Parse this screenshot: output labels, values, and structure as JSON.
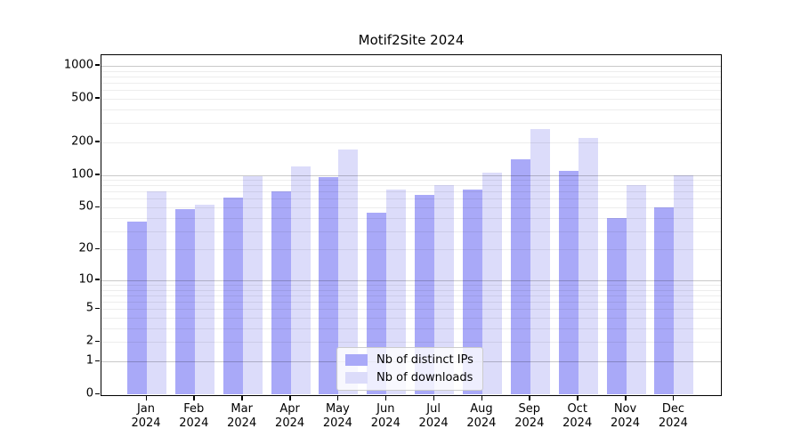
{
  "chart_data": {
    "type": "bar",
    "title": "Motif2Site 2024",
    "categories": [
      "Jan",
      "Feb",
      "Mar",
      "Apr",
      "May",
      "Jun",
      "Jul",
      "Aug",
      "Sep",
      "Oct",
      "Nov",
      "Dec"
    ],
    "x_year_label": "2024",
    "series": [
      {
        "name": "Nb of distinct IPs",
        "color": "#a9a9f8",
        "values": [
          37,
          48,
          62,
          70,
          95,
          45,
          65,
          73,
          140,
          109,
          40,
          50
        ]
      },
      {
        "name": "Nb of downloads",
        "color": "#dcdcfa",
        "values": [
          71,
          53,
          98,
          120,
          170,
          73,
          80,
          105,
          265,
          220,
          80,
          100
        ]
      }
    ],
    "xlabel": "",
    "ylabel": "",
    "y_scale": "log10(1+y)",
    "y_ticks": [
      0,
      1,
      2,
      5,
      10,
      20,
      50,
      100,
      200,
      500,
      1000
    ],
    "ylim": [
      0,
      1270
    ],
    "grid": true,
    "major_grid_values": [
      1,
      10,
      100,
      1000
    ],
    "legend_position": "bottom-center",
    "colors": {
      "major_grid": "#c6c6c6",
      "minor_grid": "#ececec",
      "spine": "#000000",
      "legend_border": "#cccccc"
    }
  }
}
